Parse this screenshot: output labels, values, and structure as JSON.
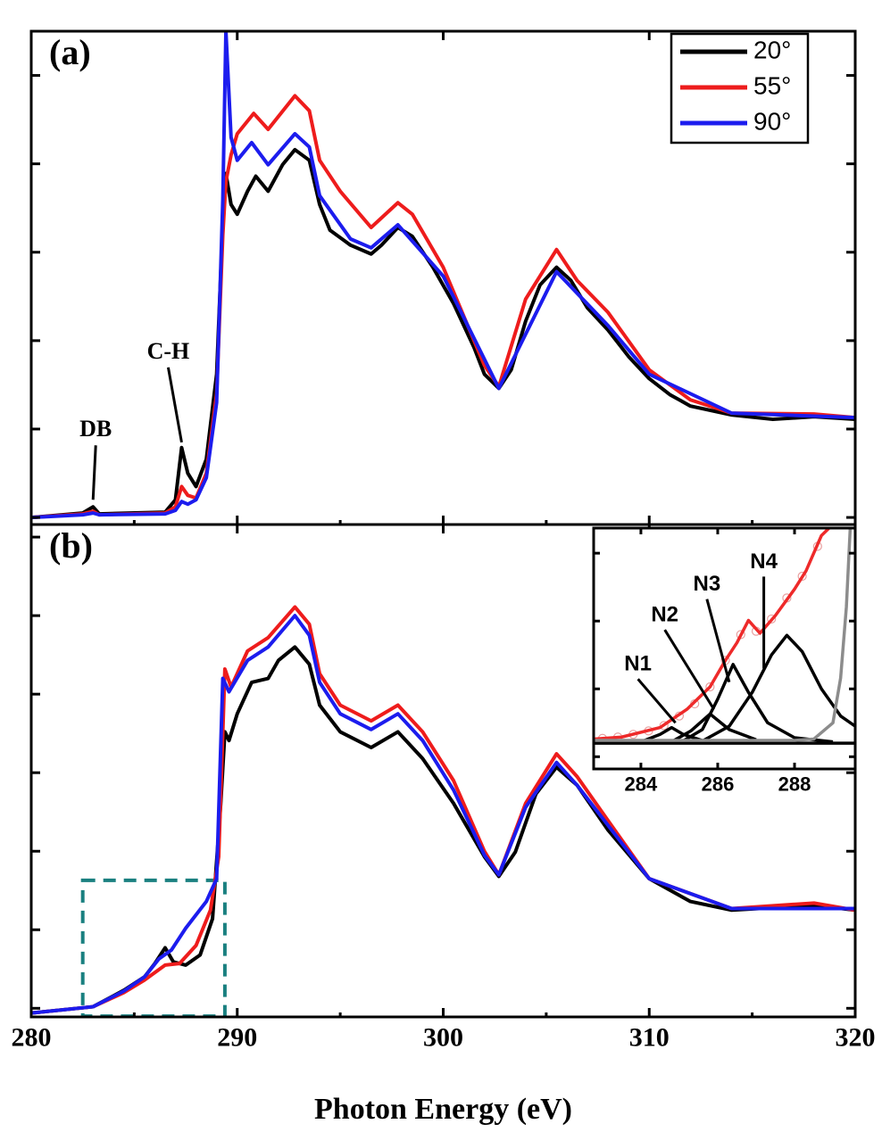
{
  "chart_data": [
    {
      "type": "line",
      "title": "(a)",
      "xlim": [
        280,
        320
      ],
      "xticks": [
        280,
        290,
        300,
        310,
        320
      ],
      "xminorticks": [
        285,
        295,
        305,
        315
      ],
      "show_xtick_labels": false,
      "ylim": [
        -0.08,
        5.5
      ],
      "yticks": [
        0,
        1,
        2,
        3,
        4,
        5
      ],
      "legend": "upper right",
      "series": [
        {
          "name": "20°",
          "color": "#000000",
          "x": [
            280,
            282.5,
            283,
            283.3,
            286.5,
            287,
            287.3,
            287.6,
            288,
            288.5,
            289,
            289.3,
            289.45,
            289.7,
            290,
            290.5,
            290.9,
            291.5,
            292.2,
            292.8,
            293.5,
            294,
            294.5,
            295.5,
            296.5,
            297,
            297.8,
            298.5,
            299.5,
            300.5,
            301.5,
            302,
            302.7,
            303.3,
            304,
            304.7,
            305.5,
            306.2,
            307,
            308,
            309,
            310,
            311,
            312,
            314,
            316,
            318,
            320
          ],
          "values": [
            0,
            0.05,
            0.12,
            0.04,
            0.06,
            0.2,
            0.79,
            0.5,
            0.35,
            0.66,
            1.62,
            3.33,
            3.89,
            3.54,
            3.43,
            3.69,
            3.86,
            3.69,
            3.99,
            4.16,
            4.04,
            3.54,
            3.25,
            3.08,
            2.98,
            3.08,
            3.28,
            3.18,
            2.83,
            2.42,
            1.92,
            1.62,
            1.46,
            1.67,
            2.22,
            2.63,
            2.83,
            2.68,
            2.37,
            2.12,
            1.82,
            1.57,
            1.39,
            1.26,
            1.16,
            1.11,
            1.14,
            1.11
          ]
        },
        {
          "name": "55°",
          "color": "#ee1c1c",
          "x": [
            280,
            282.5,
            283,
            283.3,
            286.5,
            287,
            287.3,
            287.6,
            288,
            288.5,
            289,
            289.3,
            289.45,
            289.7,
            290,
            290.8,
            291.5,
            292.8,
            293.5,
            294,
            295,
            296.5,
            297.8,
            298.5,
            300,
            302,
            302.7,
            304,
            305.5,
            306.5,
            308,
            310,
            312,
            314,
            318,
            320
          ],
          "values": [
            0,
            0.04,
            0.07,
            0.03,
            0.05,
            0.12,
            0.35,
            0.25,
            0.22,
            0.5,
            1.4,
            3.2,
            3.8,
            4.1,
            4.34,
            4.57,
            4.39,
            4.77,
            4.6,
            4.04,
            3.69,
            3.28,
            3.56,
            3.43,
            2.83,
            1.72,
            1.48,
            2.47,
            3.03,
            2.68,
            2.32,
            1.67,
            1.33,
            1.18,
            1.17,
            1.13
          ]
        },
        {
          "name": "90°",
          "color": "#1c1cee",
          "x": [
            280,
            282.5,
            283,
            283.3,
            286.5,
            287,
            287.3,
            287.6,
            288,
            288.5,
            289,
            289.3,
            289.45,
            289.7,
            290,
            290.7,
            291.5,
            292.8,
            293.5,
            294,
            295.5,
            296.5,
            297.8,
            300,
            302.7,
            305.5,
            308,
            310,
            314,
            320
          ],
          "values": [
            0,
            0.03,
            0.05,
            0.03,
            0.04,
            0.08,
            0.18,
            0.15,
            0.2,
            0.45,
            1.3,
            3.6,
            5.5,
            4.3,
            4.04,
            4.24,
            3.99,
            4.34,
            4.19,
            3.64,
            3.15,
            3.05,
            3.31,
            2.73,
            1.46,
            2.78,
            2.17,
            1.62,
            1.18,
            1.13
          ]
        }
      ],
      "annotations": [
        {
          "text": "DB",
          "x": 283,
          "y": 0.2
        },
        {
          "text": "C-H",
          "x": 287.3,
          "y": 0.85
        }
      ]
    },
    {
      "type": "line",
      "title": "(b)",
      "xlabel": "Photon Energy (eV)",
      "xlim": [
        280,
        320
      ],
      "xticks": [
        280,
        290,
        300,
        310,
        320
      ],
      "xminorticks": [
        285,
        295,
        305,
        315
      ],
      "show_xtick_labels": true,
      "ylim": [
        -0.11,
        6.16
      ],
      "yticks": [
        0,
        1,
        2,
        3,
        4,
        5,
        6
      ],
      "highlight_box": {
        "x": [
          282.5,
          289.4
        ],
        "y": [
          -0.1,
          1.63
        ],
        "color": "#1a8080"
      },
      "series": [
        {
          "color": "#000000",
          "x": [
            280,
            283,
            284.5,
            285.5,
            286,
            286.5,
            286.9,
            287.5,
            288.2,
            288.8,
            289.2,
            289.4,
            289.6,
            290,
            290.7,
            291.5,
            292,
            292.8,
            293.5,
            294,
            295,
            296.5,
            297.8,
            299,
            300.5,
            302,
            302.7,
            303.5,
            304.5,
            305.5,
            306.5,
            308,
            310,
            312,
            314,
            318,
            320
          ],
          "values": [
            -0.06,
            0.02,
            0.23,
            0.4,
            0.57,
            0.77,
            0.59,
            0.55,
            0.68,
            1.14,
            2.61,
            3.52,
            3.41,
            3.75,
            4.15,
            4.2,
            4.43,
            4.6,
            4.38,
            3.86,
            3.52,
            3.32,
            3.52,
            3.18,
            2.61,
            1.93,
            1.68,
            1.99,
            2.73,
            3.07,
            2.84,
            2.27,
            1.65,
            1.36,
            1.25,
            1.31,
            1.25
          ]
        },
        {
          "color": "#ee1c1c",
          "x": [
            280,
            283,
            284.5,
            285.5,
            286.5,
            287.2,
            288,
            288.7,
            289.1,
            289.4,
            289.7,
            290.5,
            291.5,
            292.8,
            293.5,
            294,
            295,
            296.5,
            297.8,
            299,
            300.5,
            302,
            302.7,
            304,
            305.5,
            306.5,
            308,
            310,
            314,
            318,
            320
          ],
          "values": [
            -0.06,
            0.02,
            0.2,
            0.36,
            0.55,
            0.57,
            0.8,
            1.25,
            1.93,
            4.32,
            4.09,
            4.55,
            4.72,
            5.11,
            4.89,
            4.26,
            3.86,
            3.66,
            3.86,
            3.52,
            2.9,
            2.0,
            1.7,
            2.61,
            3.24,
            2.95,
            2.39,
            1.65,
            1.27,
            1.34,
            1.25
          ]
        },
        {
          "color": "#1c1cee",
          "x": [
            280,
            283,
            284.5,
            285.5,
            286.2,
            286.8,
            287.5,
            288.5,
            289,
            289.3,
            289.6,
            290.5,
            291.5,
            292.8,
            293.5,
            294,
            295,
            296.5,
            297.8,
            299,
            300.5,
            302,
            302.7,
            304,
            305.5,
            306.5,
            308,
            310,
            314,
            320
          ],
          "values": [
            -0.06,
            0.02,
            0.22,
            0.4,
            0.63,
            0.74,
            1.02,
            1.36,
            1.65,
            4.2,
            4.03,
            4.43,
            4.6,
            5.0,
            4.75,
            4.15,
            3.75,
            3.55,
            3.75,
            3.41,
            2.78,
            1.95,
            1.7,
            2.56,
            3.13,
            2.84,
            2.33,
            1.65,
            1.27,
            1.27
          ]
        }
      ]
    },
    {
      "type": "line",
      "xlim": [
        282.77,
        289.58
      ],
      "xticks": [
        284,
        286,
        288
      ],
      "show_xtick_labels": true,
      "ylim": [
        -0.18,
        3.37
      ],
      "yticks": [
        0,
        1,
        2,
        3
      ],
      "series": [
        {
          "color": "#e8a0a0",
          "marker": "circle",
          "x": [
            283,
            283.4,
            283.8,
            284.2,
            284.6,
            285,
            285.4,
            285.8,
            286.2,
            286.6,
            287,
            287.4,
            287.8,
            288.2,
            288.6
          ],
          "values": [
            0.27,
            0.29,
            0.33,
            0.38,
            0.46,
            0.6,
            0.78,
            1.03,
            1.42,
            1.8,
            1.85,
            2.03,
            2.34,
            2.66,
            3.1
          ]
        },
        {
          "color": "#ee2a2a",
          "x": [
            282.77,
            283.5,
            284.5,
            285.2,
            285.8,
            286.2,
            286.5,
            286.8,
            287.1,
            287.5,
            288,
            288.3,
            288.7,
            288.9
          ],
          "values": [
            0.26,
            0.29,
            0.43,
            0.7,
            1.03,
            1.42,
            1.68,
            2.01,
            1.82,
            2.08,
            2.47,
            2.74,
            3.26,
            3.37
          ]
        },
        {
          "color": "#000000",
          "x": [
            284.0,
            284.5,
            284.8,
            285.1,
            285.7
          ],
          "values": [
            0.22,
            0.33,
            0.43,
            0.33,
            0.22
          ]
        },
        {
          "color": "#000000",
          "x": [
            284.8,
            285.3,
            285.8,
            286.3,
            287.0
          ],
          "values": [
            0.22,
            0.38,
            0.63,
            0.4,
            0.25
          ]
        },
        {
          "color": "#000000",
          "x": [
            285.0,
            285.6,
            286.0,
            286.4,
            286.8,
            287.3,
            288.0,
            289.0
          ],
          "values": [
            0.2,
            0.4,
            0.85,
            1.36,
            0.95,
            0.5,
            0.28,
            0.22
          ]
        },
        {
          "color": "#000000",
          "x": [
            285.5,
            286.3,
            286.9,
            287.4,
            287.8,
            288.2,
            288.7,
            289.2,
            289.58
          ],
          "values": [
            0.2,
            0.45,
            0.95,
            1.5,
            1.79,
            1.55,
            1.0,
            0.6,
            0.45
          ]
        },
        {
          "color": "#000000",
          "x": [
            282.77,
            289.58
          ],
          "values": [
            0.2,
            0.2
          ]
        },
        {
          "color": "#8c8c8c",
          "x": [
            282.77,
            288,
            288.5,
            289,
            289.2,
            289.35,
            289.45
          ],
          "values": [
            0.24,
            0.24,
            0.26,
            0.5,
            1.16,
            2.21,
            3.37
          ]
        }
      ],
      "annotations": [
        {
          "text": "N1",
          "x": 284.9,
          "y": 0.5
        },
        {
          "text": "N2",
          "x": 285.9,
          "y": 0.7
        },
        {
          "text": "N3",
          "x": 286.3,
          "y": 1.1
        },
        {
          "text": "N4",
          "x": 287.2,
          "y": 1.3
        }
      ]
    }
  ]
}
